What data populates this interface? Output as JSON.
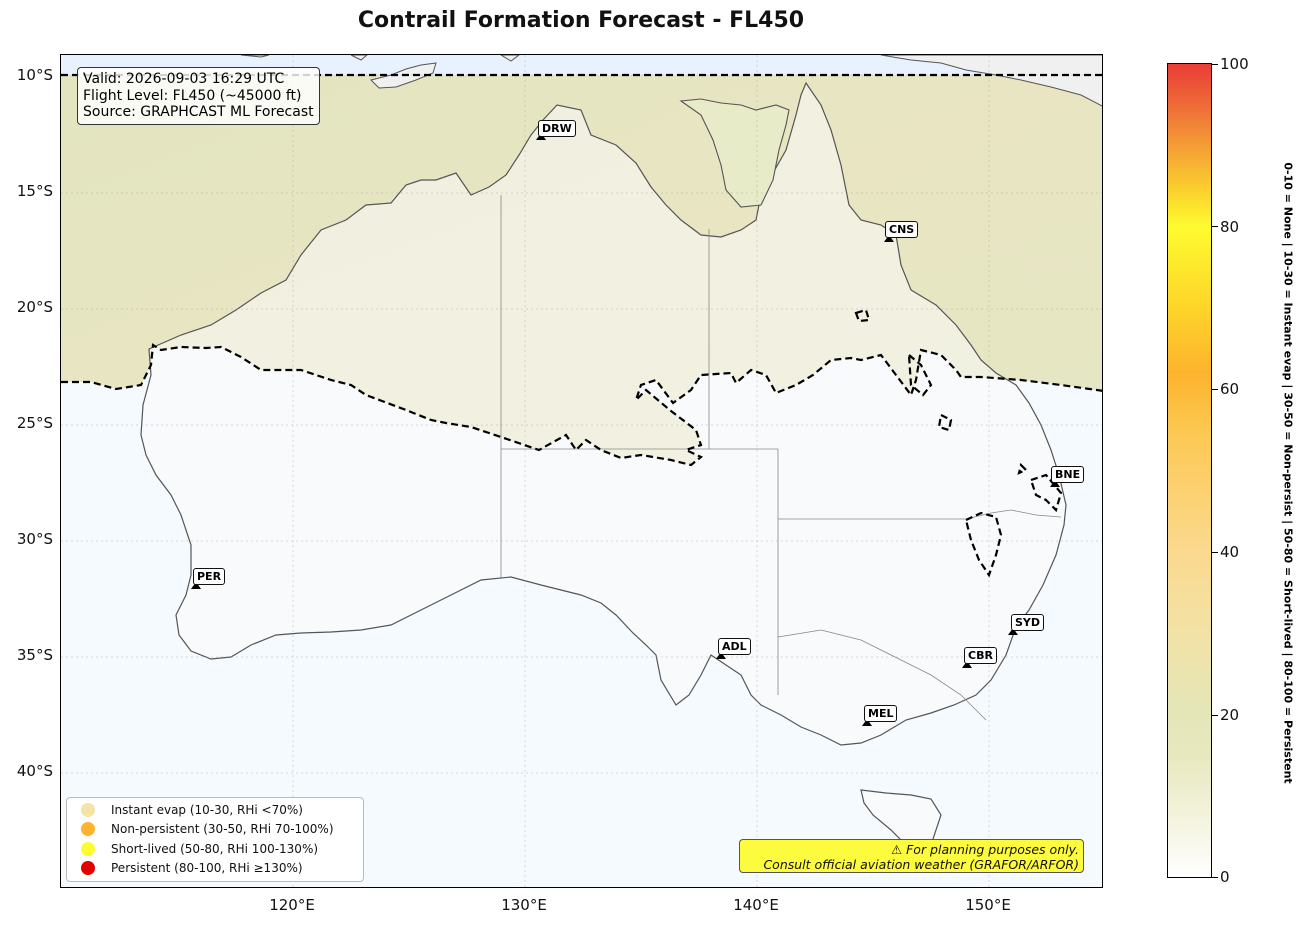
{
  "title": "Contrail Formation Forecast - FL450",
  "info": {
    "valid": "Valid: 2026-09-03 16:29 UTC",
    "flight_level": "Flight Level: FL450 (~45000 ft)",
    "source": "Source: GRAPHCAST ML Forecast"
  },
  "map": {
    "lat_labels": [
      "10°S",
      "15°S",
      "20°S",
      "25°S",
      "30°S",
      "35°S",
      "40°S"
    ],
    "lon_labels": [
      "120°E",
      "130°E",
      "140°E",
      "150°E"
    ],
    "colors": {
      "ocean": "#f5faff",
      "land": "#fafafa",
      "contrail_zone": "#e6e6c0",
      "coast": "#555555",
      "boundary": "#000000"
    }
  },
  "cities": [
    {
      "code": "DRW",
      "lat": -12.46,
      "lon": 130.84
    },
    {
      "code": "CNS",
      "lat": -16.92,
      "lon": 145.77
    },
    {
      "code": "BNE",
      "lat": -27.47,
      "lon": 153.03
    },
    {
      "code": "PER",
      "lat": -31.95,
      "lon": 115.86
    },
    {
      "code": "SYD",
      "lat": -33.87,
      "lon": 151.21
    },
    {
      "code": "ADL",
      "lat": -34.93,
      "lon": 138.6
    },
    {
      "code": "CBR",
      "lat": -35.28,
      "lon": 149.13
    },
    {
      "code": "MEL",
      "lat": -37.81,
      "lon": 144.96
    }
  ],
  "legend": [
    {
      "label": "Instant evap (10-30, RHi <70%)",
      "color": "#f3e4a8"
    },
    {
      "label": "Non-persistent (30-50, RHi 70-100%)",
      "color": "#fdb32d"
    },
    {
      "label": "Short-lived (50-80, RHi 100-130%)",
      "color": "#fefb30"
    },
    {
      "label": "Persistent (80-100, RHi ≥130%)",
      "color": "#e50000"
    }
  ],
  "disclaimer": {
    "line1": "⚠ For planning purposes only.",
    "line2": "Consult official aviation weather (GRAFOR/ARFOR)"
  },
  "colorbar": {
    "ticks": [
      "0",
      "20",
      "40",
      "60",
      "80",
      "100"
    ],
    "side_label": "0-10 = None  |  10-30 = Instant evap  |  30-50 = Non-persist  |  50-80 = Short-lived  |  80-100 = Persistent"
  }
}
